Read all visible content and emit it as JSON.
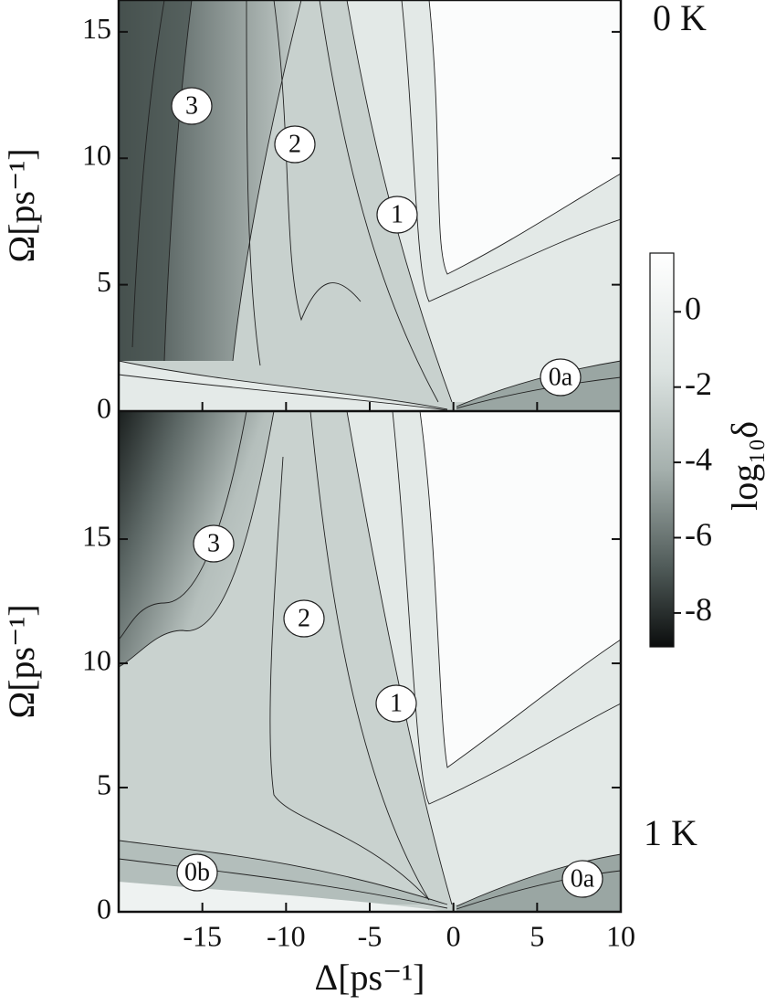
{
  "chart_data": [
    {
      "type": "contour",
      "label": "0 K",
      "ylabel": "Ω[ps⁻¹]",
      "xlim": [
        -20,
        10
      ],
      "ylim": [
        0,
        16.26
      ],
      "xticks": [
        -15,
        -10,
        -5,
        0,
        5,
        10
      ],
      "yticks": [
        0,
        5,
        10,
        15
      ],
      "annotations": [
        "3",
        "2",
        "1",
        "0a"
      ]
    },
    {
      "type": "contour",
      "label": "1 K",
      "xlabel": "Δ[ps⁻¹]",
      "ylabel": "Ω[ps⁻¹]",
      "xlim": [
        -20,
        10
      ],
      "ylim": [
        0,
        20.15
      ],
      "xticks": [
        -15,
        -10,
        -5,
        0,
        5,
        10
      ],
      "yticks": [
        0,
        5,
        10,
        15
      ],
      "annotations": [
        "3",
        "2",
        "1",
        "0b",
        "0a"
      ]
    },
    {
      "type": "colorbar",
      "label": "log₁₀δ",
      "ylim": [
        -8.9,
        1.56
      ],
      "yticks": [
        0,
        -2,
        -4,
        -6,
        -8
      ]
    }
  ]
}
